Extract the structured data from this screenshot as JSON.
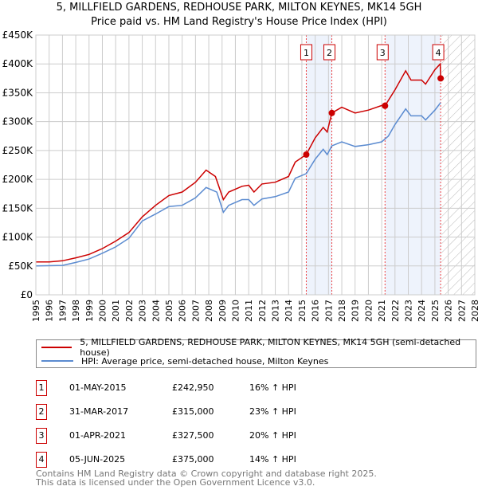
{
  "title": "5, MILLFIELD GARDENS, REDHOUSE PARK, MILTON KEYNES, MK14 5GH",
  "subtitle": "Price paid vs. HM Land Registry's House Price Index (HPI)",
  "colors": {
    "property": "#cc0000",
    "hpi": "#5b8bd0",
    "shade": "#eef3fc",
    "marker": "#cc0000"
  },
  "chart_data": {
    "type": "line",
    "xlim": [
      1995,
      2028
    ],
    "ylim": [
      0,
      450000
    ],
    "y_ticks": [
      {
        "v": 0,
        "label": "£0"
      },
      {
        "v": 50000,
        "label": "£50K"
      },
      {
        "v": 100000,
        "label": "£100K"
      },
      {
        "v": 150000,
        "label": "£150K"
      },
      {
        "v": 200000,
        "label": "£200K"
      },
      {
        "v": 250000,
        "label": "£250K"
      },
      {
        "v": 300000,
        "label": "£300K"
      },
      {
        "v": 350000,
        "label": "£350K"
      },
      {
        "v": 400000,
        "label": "£400K"
      },
      {
        "v": 450000,
        "label": "£450K"
      }
    ],
    "x_ticks": [
      "1995",
      "1996",
      "1997",
      "1998",
      "1999",
      "2000",
      "2001",
      "2002",
      "2003",
      "2004",
      "2005",
      "2006",
      "2007",
      "2008",
      "2009",
      "2010",
      "2011",
      "2012",
      "2013",
      "2014",
      "2015",
      "2016",
      "2017",
      "2018",
      "2019",
      "2020",
      "2021",
      "2022",
      "2023",
      "2024",
      "2025",
      "2026",
      "2027",
      "2028"
    ],
    "shaded_ranges": [
      [
        2015.33,
        2017.25
      ],
      [
        2021.25,
        2025.43
      ]
    ],
    "forecast_from": 2025.5,
    "series": [
      {
        "name": "5, MILLFIELD GARDENS, REDHOUSE PARK, MILTON KEYNES, MK14 5GH (semi-detached house)",
        "color": "#cc0000",
        "x": [
          1995,
          1996,
          1997,
          1998,
          1999,
          2000,
          2001,
          2002,
          2003,
          2004,
          2005,
          2006,
          2007,
          2007.8,
          2008.5,
          2009.1,
          2009.5,
          2010.5,
          2011,
          2011.4,
          2012,
          2013,
          2014,
          2014.5,
          2015.33,
          2016,
          2016.6,
          2016.9,
          2017.25,
          2018,
          2019,
          2020,
          2021,
          2021.25,
          2022,
          2022.8,
          2023.2,
          2024,
          2024.3,
          2025,
          2025.4,
          2025.43
        ],
        "y": [
          57000,
          57000,
          59000,
          64000,
          70000,
          80000,
          93000,
          108000,
          135000,
          155000,
          172000,
          178000,
          195000,
          216000,
          205000,
          165000,
          178000,
          188000,
          190000,
          178000,
          192000,
          195000,
          205000,
          230000,
          242950,
          272000,
          290000,
          282000,
          315000,
          325000,
          315000,
          320000,
          328000,
          327500,
          355000,
          388000,
          372000,
          372000,
          365000,
          390000,
          400000,
          375000
        ]
      },
      {
        "name": "HPI: Average price, semi-detached house, Milton Keynes",
        "color": "#5b8bd0",
        "x": [
          1995,
          1997,
          1998,
          1999,
          2000,
          2001,
          2002,
          2003,
          2004,
          2005,
          2006,
          2007,
          2007.8,
          2008.6,
          2009.1,
          2009.5,
          2010.5,
          2011,
          2011.4,
          2012,
          2013,
          2014,
          2014.5,
          2015.33,
          2016,
          2016.6,
          2016.9,
          2017.25,
          2018,
          2019,
          2020,
          2021,
          2021.5,
          2022,
          2022.8,
          2023.2,
          2024,
          2024.3,
          2025,
          2025.43
        ],
        "y": [
          50000,
          51000,
          56000,
          62000,
          72000,
          83000,
          98000,
          128000,
          140000,
          153000,
          155000,
          168000,
          186000,
          178000,
          143000,
          155000,
          165000,
          165000,
          155000,
          166000,
          170000,
          178000,
          202000,
          210000,
          235000,
          252000,
          243000,
          258000,
          265000,
          257000,
          260000,
          265000,
          275000,
          295000,
          322000,
          310000,
          310000,
          303000,
          320000,
          333000
        ]
      }
    ],
    "sales": [
      {
        "n": "1",
        "x": 2015.33,
        "date": "01-MAY-2015",
        "price_value": 242950,
        "price": "£242,950",
        "hpi": "16% ↑ HPI"
      },
      {
        "n": "2",
        "x": 2017.25,
        "date": "31-MAR-2017",
        "price_value": 315000,
        "price": "£315,000",
        "hpi": "23% ↑ HPI"
      },
      {
        "n": "3",
        "x": 2021.25,
        "date": "01-APR-2021",
        "price_value": 327500,
        "price": "£327,500",
        "hpi": "20% ↑ HPI"
      },
      {
        "n": "4",
        "x": 2025.43,
        "date": "05-JUN-2025",
        "price_value": 375000,
        "price": "£375,000",
        "hpi": "14% ↑ HPI"
      }
    ]
  },
  "legend": {
    "property": "5, MILLFIELD GARDENS, REDHOUSE PARK, MILTON KEYNES, MK14 5GH (semi-detached house)",
    "hpi": "HPI: Average price, semi-detached house, Milton Keynes"
  },
  "footer": {
    "line1": "Contains HM Land Registry data © Crown copyright and database right 2025.",
    "line2": "This data is licensed under the Open Government Licence v3.0."
  }
}
